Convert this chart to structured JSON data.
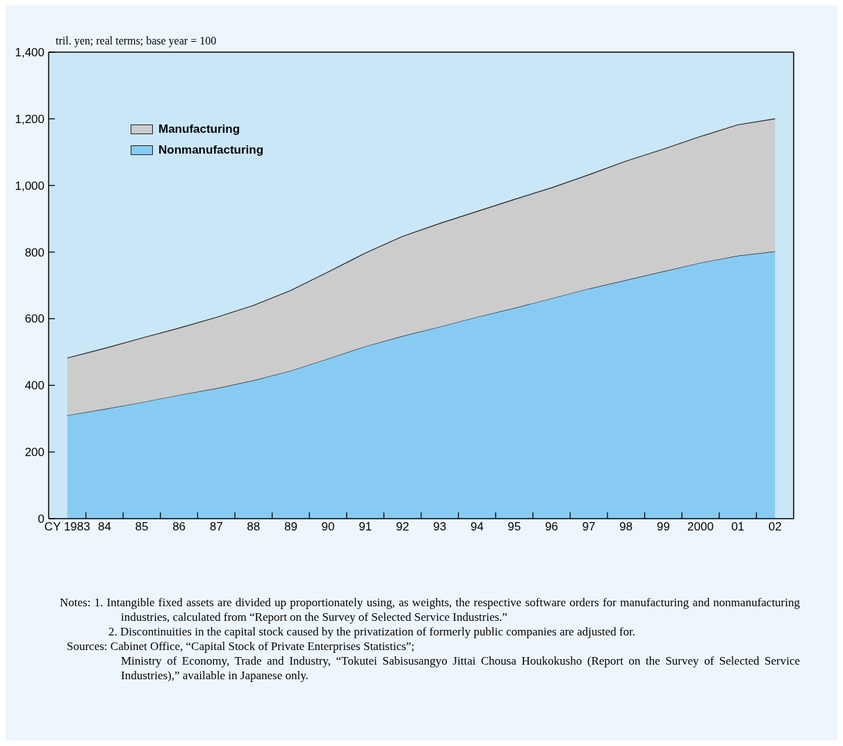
{
  "chart_data": {
    "type": "area",
    "stacked": true,
    "ylabel": "tril. yen; real terms; base year = 100",
    "categories": [
      "CY 1983",
      "84",
      "85",
      "86",
      "87",
      "88",
      "89",
      "90",
      "91",
      "92",
      "93",
      "94",
      "95",
      "96",
      "97",
      "98",
      "99",
      "2000",
      "01",
      "02"
    ],
    "series": [
      {
        "name": "Nonmanufacturing",
        "color": "#87cbf3",
        "values": [
          310,
          329,
          349,
          371,
          391,
          415,
          444,
          480,
          517,
          548,
          576,
          605,
          632,
          661,
          690,
          716,
          742,
          768,
          789,
          802
        ]
      },
      {
        "name": "Manufacturing",
        "color": "#cccccc",
        "values": [
          172,
          182,
          193,
          201,
          213,
          225,
          241,
          260,
          280,
          299,
          310,
          317,
          326,
          332,
          342,
          357,
          367,
          379,
          393,
          398
        ]
      }
    ],
    "ylim": [
      0,
      1400
    ],
    "yticks": [
      0,
      200,
      400,
      600,
      800,
      {
        "value": 1000,
        "label": "1,000"
      },
      {
        "value": 1200,
        "label": "1,200"
      },
      {
        "value": 1400,
        "label": "1,400"
      }
    ],
    "legend": "top left",
    "annotations": [
      "Notes: 1. Intangible fixed assets are divided up proportionately using, as weights, the respective software orders for manufacturing and nonmanufacturing industries, calculated from “Report on the Survey of Selected Service Industries.”",
      "2. Discontinuities in the capital stock caused by the privatization of formerly public companies are adjusted for.",
      "Sources: Cabinet Office, “Capital Stock of Private Enterprises Statistics”;",
      "Ministry of Economy, Trade and Industry, “Tokutei Sabisusangyo Jittai Chousa Houkokusho (Report on the Survey of Selected Service Industries),” available in Japanese only."
    ]
  }
}
